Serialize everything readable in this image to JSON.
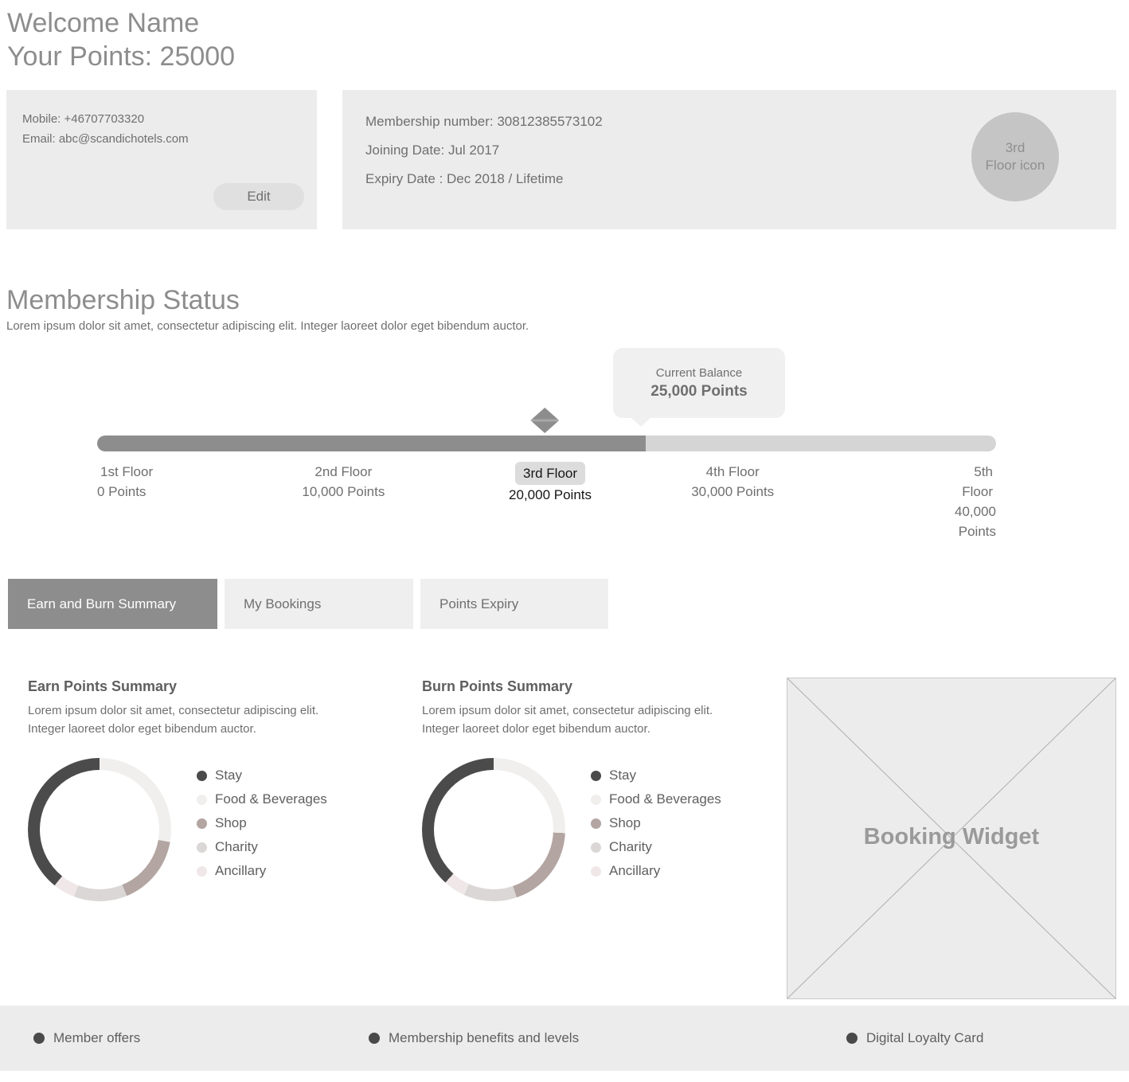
{
  "header": {
    "welcome": "Welcome Name",
    "points_line": "Your Points: 25000"
  },
  "contact_card": {
    "mobile": "Mobile: +46707703320",
    "email": "Email: abc@scandichotels.com",
    "edit_label": "Edit"
  },
  "membership_card": {
    "membership_number": "Membership number: 30812385573102",
    "joining_date": "Joining Date: Jul 2017",
    "expiry_date": "Expiry Date : Dec 2018 / Lifetime",
    "badge": {
      "line1": "3rd",
      "line2": "Floor icon"
    }
  },
  "membership_status": {
    "title": "Membership Status",
    "description": "Lorem ipsum dolor sit amet, consectetur adipiscing elit. Integer laoreet dolor eget bibendum auctor.",
    "tooltip": {
      "label": "Current Balance",
      "value": "25,000 Points"
    },
    "progress": {
      "fill_percent": 61,
      "marker_percent": 49.8,
      "max_points": 40000,
      "current_points": 25000
    },
    "floors": [
      {
        "name": "1st Floor",
        "points": "0 Points",
        "active": false
      },
      {
        "name": "2nd Floor",
        "points": "10,000 Points",
        "active": false
      },
      {
        "name": "3rd Floor",
        "points": "20,000 Points",
        "active": true
      },
      {
        "name": "4th Floor",
        "points": "30,000 Points",
        "active": false
      },
      {
        "name": "5th Floor",
        "points": "40,000 Points",
        "active": false
      }
    ]
  },
  "tabs": [
    {
      "label": "Earn and Burn Summary",
      "active": true
    },
    {
      "label": "My Bookings",
      "active": false
    },
    {
      "label": "Points Expiry",
      "active": false
    }
  ],
  "earn_summary": {
    "title": "Earn Points Summary",
    "description": "Lorem ipsum dolor sit amet, consectetur adipiscing elit. Integer laoreet dolor eget bibendum auctor."
  },
  "burn_summary": {
    "title": "Burn Points Summary",
    "description": "Lorem ipsum dolor sit amet, consectetur adipiscing elit. Integer laoreet dolor eget bibendum auctor."
  },
  "chart_data": [
    {
      "type": "pie",
      "title": "Earn Points Summary",
      "categories": [
        "Stay",
        "Food & Beverages",
        "Shop",
        "Charity",
        "Ancillary"
      ],
      "values": [
        37,
        30,
        16,
        12,
        5
      ],
      "colors": [
        "#4b4b4b",
        "#f0efed",
        "#b3a5a1",
        "#dbd7d6",
        "#f0e8e8"
      ],
      "draw_order": [
        1,
        2,
        3,
        4,
        0
      ],
      "start_angle_deg": -8,
      "legend_position": "right",
      "donut": true
    },
    {
      "type": "pie",
      "title": "Burn Points Summary",
      "categories": [
        "Stay",
        "Food & Beverages",
        "Shop",
        "Charity",
        "Ancillary"
      ],
      "values": [
        36,
        28,
        19,
        12,
        5
      ],
      "colors": [
        "#4b4b4b",
        "#f0efed",
        "#b3a5a1",
        "#dbd7d6",
        "#f0e8e8"
      ],
      "draw_order": [
        1,
        2,
        3,
        4,
        0
      ],
      "start_angle_deg": -8,
      "legend_position": "right",
      "donut": true
    }
  ],
  "booking_widget": {
    "label": "Booking Widget"
  },
  "footer": {
    "items": [
      {
        "label": "Member offers"
      },
      {
        "label": "Membership benefits and levels"
      },
      {
        "label": "Digital Loyalty Card"
      }
    ]
  },
  "colors": {
    "accent_gray": "#8d8d8d",
    "card_background": "#ececec",
    "track_gray": "#d5d5d5",
    "active_tab_text": "#ffffff"
  }
}
